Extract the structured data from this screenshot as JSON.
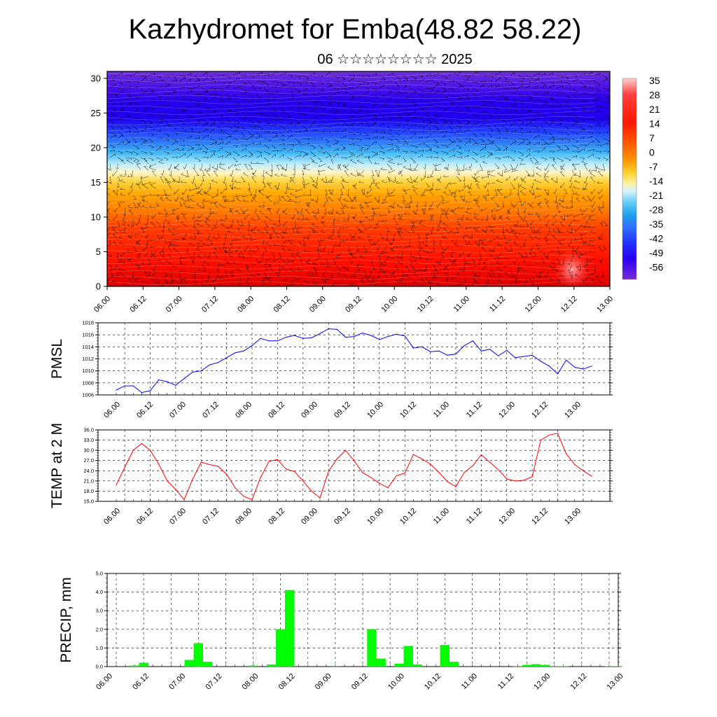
{
  "title": "Kazhydromet for Emba(48.82 58.22)",
  "subtitle": "06 ☆☆☆☆☆☆☆☆ 2025",
  "time_labels": [
    "06.00",
    "06.12",
    "07.00",
    "07.12",
    "08.00",
    "08.12",
    "09.00",
    "09.12",
    "10.00",
    "10.12",
    "11.00",
    "11.12",
    "12.00",
    "12.12",
    "13.00"
  ],
  "chart_data": [
    {
      "type": "heatmap",
      "name": "cross-section",
      "y_ticks": [
        "0",
        "5",
        "10",
        "15",
        "20",
        "25",
        "30"
      ],
      "ylim": [
        0,
        31
      ],
      "colorbar": {
        "labels": [
          "35",
          "28",
          "21",
          "14",
          "7",
          "0",
          "-7",
          "-14",
          "-21",
          "-28",
          "-35",
          "-42",
          "-49",
          "-56"
        ],
        "colors": [
          "#ffc8c8",
          "#ff4040",
          "#ff1a00",
          "#ff4400",
          "#ff8000",
          "#ffb000",
          "#ffe040",
          "#fff5c0",
          "#a8e6ff",
          "#30b0f0",
          "#3070ff",
          "#2030ff",
          "#2b00f0",
          "#7a2cd8"
        ]
      }
    },
    {
      "type": "line",
      "name": "PMSL",
      "ylabel": "PMSL",
      "ylim": [
        1006,
        1018
      ],
      "y_ticks": [
        "1006",
        "1008",
        "1010",
        "1012",
        "1014",
        "1016",
        "1018"
      ],
      "color": "#0000ff",
      "values": [
        1006.8,
        1007.5,
        1007.5,
        1006.4,
        1006.7,
        1008.5,
        1008.2,
        1007.6,
        1008.7,
        1009.8,
        1010.0,
        1011.0,
        1011.4,
        1012.2,
        1013.0,
        1013.3,
        1014.2,
        1015.4,
        1015.0,
        1015.0,
        1015.6,
        1015.9,
        1015.4,
        1015.5,
        1016.2,
        1017.0,
        1016.9,
        1015.6,
        1015.7,
        1016.3,
        1015.9,
        1015.2,
        1015.7,
        1016.1,
        1015.8,
        1013.8,
        1014.0,
        1013.2,
        1013.3,
        1012.6,
        1012.8,
        1014.2,
        1015.0,
        1013.3,
        1013.6,
        1012.5,
        1013.4,
        1012.2,
        1012.4,
        1012.6,
        1011.6,
        1010.8,
        1009.5,
        1011.8,
        1010.6,
        1010.3,
        1010.8
      ]
    },
    {
      "type": "line",
      "name": "TEMP at 2 M",
      "ylabel": "TEMP at 2 M",
      "ylim": [
        15,
        36
      ],
      "y_ticks": [
        "15.0",
        "18.0",
        "21.0",
        "24.0",
        "27.0",
        "30.0",
        "33.0",
        "36.0"
      ],
      "color": "#ff0000",
      "values": [
        19.8,
        25.0,
        30.0,
        32.0,
        30.0,
        26.0,
        21.0,
        18.5,
        15.5,
        21.5,
        26.5,
        25.8,
        25.3,
        23.0,
        19.0,
        16.5,
        15.5,
        22.0,
        26.8,
        27.3,
        24.5,
        23.8,
        21.0,
        18.0,
        16.0,
        23.8,
        27.5,
        30.0,
        27.0,
        23.5,
        22.0,
        20.3,
        19.0,
        22.5,
        23.3,
        28.8,
        27.5,
        26.0,
        23.5,
        20.8,
        19.3,
        23.5,
        25.5,
        28.7,
        26.5,
        24.3,
        21.6,
        21.0,
        21.2,
        22.2,
        33.0,
        34.5,
        35.0,
        29.0,
        25.8,
        24.0,
        22.4
      ]
    },
    {
      "type": "bar",
      "name": "PRECIP",
      "ylabel": "PRECIP, mm",
      "ylim": [
        0,
        5
      ],
      "y_ticks": [
        "0.0",
        "1.0",
        "2.0",
        "3.0",
        "4.0",
        "5.0"
      ],
      "color": "#00ff00",
      "values": [
        0,
        0,
        0,
        0.05,
        0.2,
        0,
        0,
        0,
        0,
        0.35,
        1.25,
        0.25,
        0,
        0,
        0,
        0,
        0.05,
        0,
        0.1,
        2.0,
        4.1,
        0,
        0,
        0,
        0,
        0.03,
        0,
        0,
        0,
        2.0,
        0.42,
        0,
        0.15,
        1.1,
        0.1,
        0,
        0,
        1.15,
        0.25,
        0,
        0,
        0,
        0,
        0,
        0,
        0.02,
        0.08,
        0.12,
        0.08,
        0.02,
        0.01,
        0,
        0,
        0,
        0,
        0.02,
        0.01
      ]
    }
  ]
}
